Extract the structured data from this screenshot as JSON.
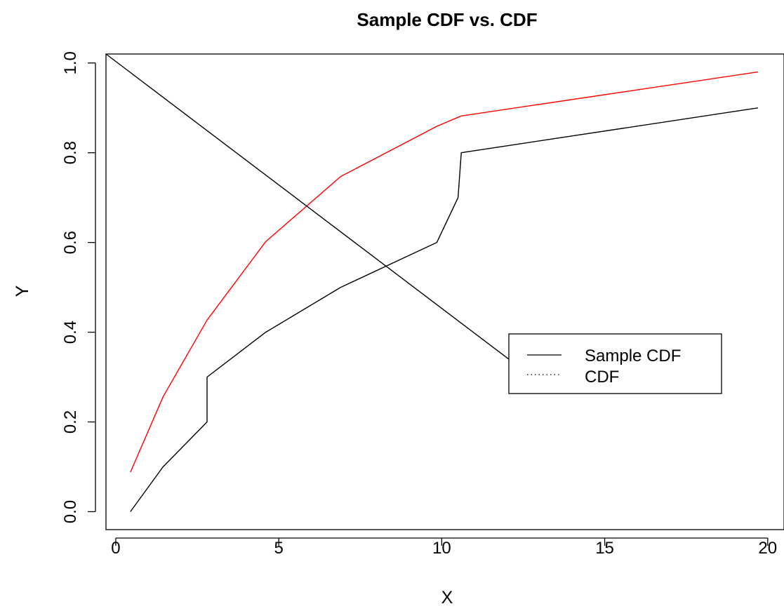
{
  "chart_data": {
    "type": "line",
    "title": "Sample CDF vs. CDF",
    "xlabel": "X",
    "ylabel": "Y",
    "xlim": [
      -0.3,
      20.5
    ],
    "ylim": [
      -0.04,
      1.02
    ],
    "xticks": [
      0,
      5,
      10,
      15,
      20
    ],
    "xtick_labels": [
      "0",
      "5",
      "10",
      "15",
      "20"
    ],
    "yticks": [
      0.0,
      0.2,
      0.4,
      0.6,
      0.8,
      1.0
    ],
    "ytick_labels": [
      "0.0",
      "0.2",
      "0.4",
      "0.6",
      "0.8",
      "1.0"
    ],
    "grid": false,
    "legend_position": "right",
    "series": [
      {
        "name": "Sample CDF",
        "color": "#000000",
        "style": "solid",
        "x": [
          0.45,
          1.45,
          2.8,
          2.8,
          4.6,
          6.9,
          9.85,
          10.5,
          10.6,
          19.7
        ],
        "y": [
          0.0,
          0.1,
          0.2,
          0.3,
          0.4,
          0.5,
          0.6,
          0.7,
          0.8,
          0.9
        ]
      },
      {
        "color": "#ff0000",
        "style": "solid",
        "x": [
          0.45,
          1.45,
          2.8,
          4.6,
          6.9,
          9.85,
          10.6,
          19.7
        ],
        "y": [
          0.088,
          0.256,
          0.427,
          0.602,
          0.747,
          0.859,
          0.882,
          0.98
        ]
      },
      {
        "color": "#000000",
        "style": "solid",
        "x": [
          -0.3,
          12.6
        ],
        "y": [
          1.02,
          0.31
        ]
      }
    ],
    "legend": [
      {
        "label": "Sample CDF",
        "style": "solid"
      },
      {
        "label": "CDF",
        "style": "dotted"
      }
    ]
  }
}
